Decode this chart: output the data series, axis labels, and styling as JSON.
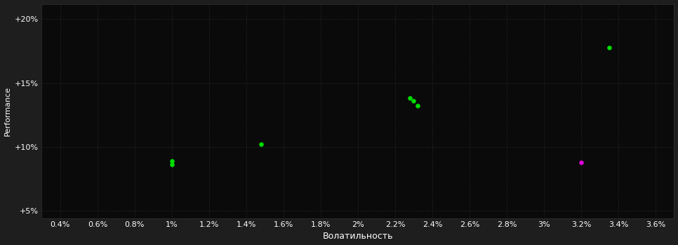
{
  "background_color": "#1e1e1e",
  "plot_bg_color": "#0a0a0a",
  "grid_color": "#2a2a2a",
  "text_color": "#ffffff",
  "xlabel": "Волатильность",
  "ylabel": "Performance",
  "xlim": [
    0.003,
    0.037
  ],
  "ylim": [
    0.044,
    0.212
  ],
  "xticks": [
    0.004,
    0.006,
    0.008,
    0.01,
    0.012,
    0.014,
    0.016,
    0.018,
    0.02,
    0.022,
    0.024,
    0.026,
    0.028,
    0.03,
    0.032,
    0.034,
    0.036
  ],
  "yticks": [
    0.05,
    0.1,
    0.15,
    0.2
  ],
  "green_points": [
    [
      0.01,
      0.089
    ],
    [
      0.01,
      0.086
    ],
    [
      0.0148,
      0.102
    ],
    [
      0.0228,
      0.138
    ],
    [
      0.023,
      0.136
    ],
    [
      0.0232,
      0.132
    ],
    [
      0.0335,
      0.178
    ]
  ],
  "magenta_points": [
    [
      0.032,
      0.088
    ]
  ],
  "green_color": "#00dd00",
  "magenta_color": "#dd00dd",
  "dot_size": 22
}
